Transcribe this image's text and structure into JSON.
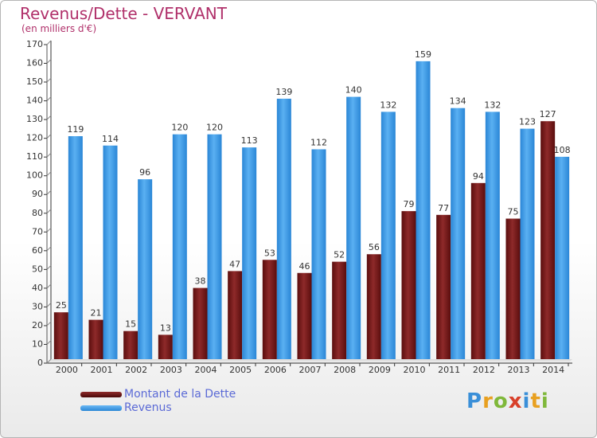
{
  "chart_data": {
    "type": "bar",
    "title": "Revenus/Dette - VERVANT",
    "subtitle": "(en milliers d'€)",
    "categories": [
      "2000",
      "2001",
      "2002",
      "2003",
      "2004",
      "2005",
      "2006",
      "2007",
      "2008",
      "2009",
      "2010",
      "2011",
      "2012",
      "2013",
      "2014"
    ],
    "series": [
      {
        "name": "Montant de la Dette",
        "color": "#7a1a1a",
        "values": [
          25,
          21,
          15,
          13,
          38,
          47,
          53,
          46,
          52,
          56,
          79,
          77,
          94,
          75,
          127
        ]
      },
      {
        "name": "Revenus",
        "color": "#3b9be8",
        "values": [
          119,
          114,
          96,
          120,
          120,
          113,
          139,
          112,
          140,
          132,
          159,
          134,
          132,
          123,
          108
        ]
      }
    ],
    "ylim": [
      0,
      170
    ],
    "yticks": [
      0,
      10,
      20,
      30,
      40,
      50,
      60,
      70,
      80,
      90,
      100,
      110,
      120,
      130,
      140,
      150,
      160,
      170
    ],
    "grid": false,
    "legend": "bottom-left"
  },
  "logo": {
    "letters": [
      "P",
      "r",
      "o",
      "x",
      "i",
      "t",
      "i"
    ],
    "colors": [
      "#3a8fd8",
      "#e8a020",
      "#7fb83a",
      "#d8402a",
      "#3a8fd8",
      "#e8a020",
      "#7fb83a"
    ]
  }
}
